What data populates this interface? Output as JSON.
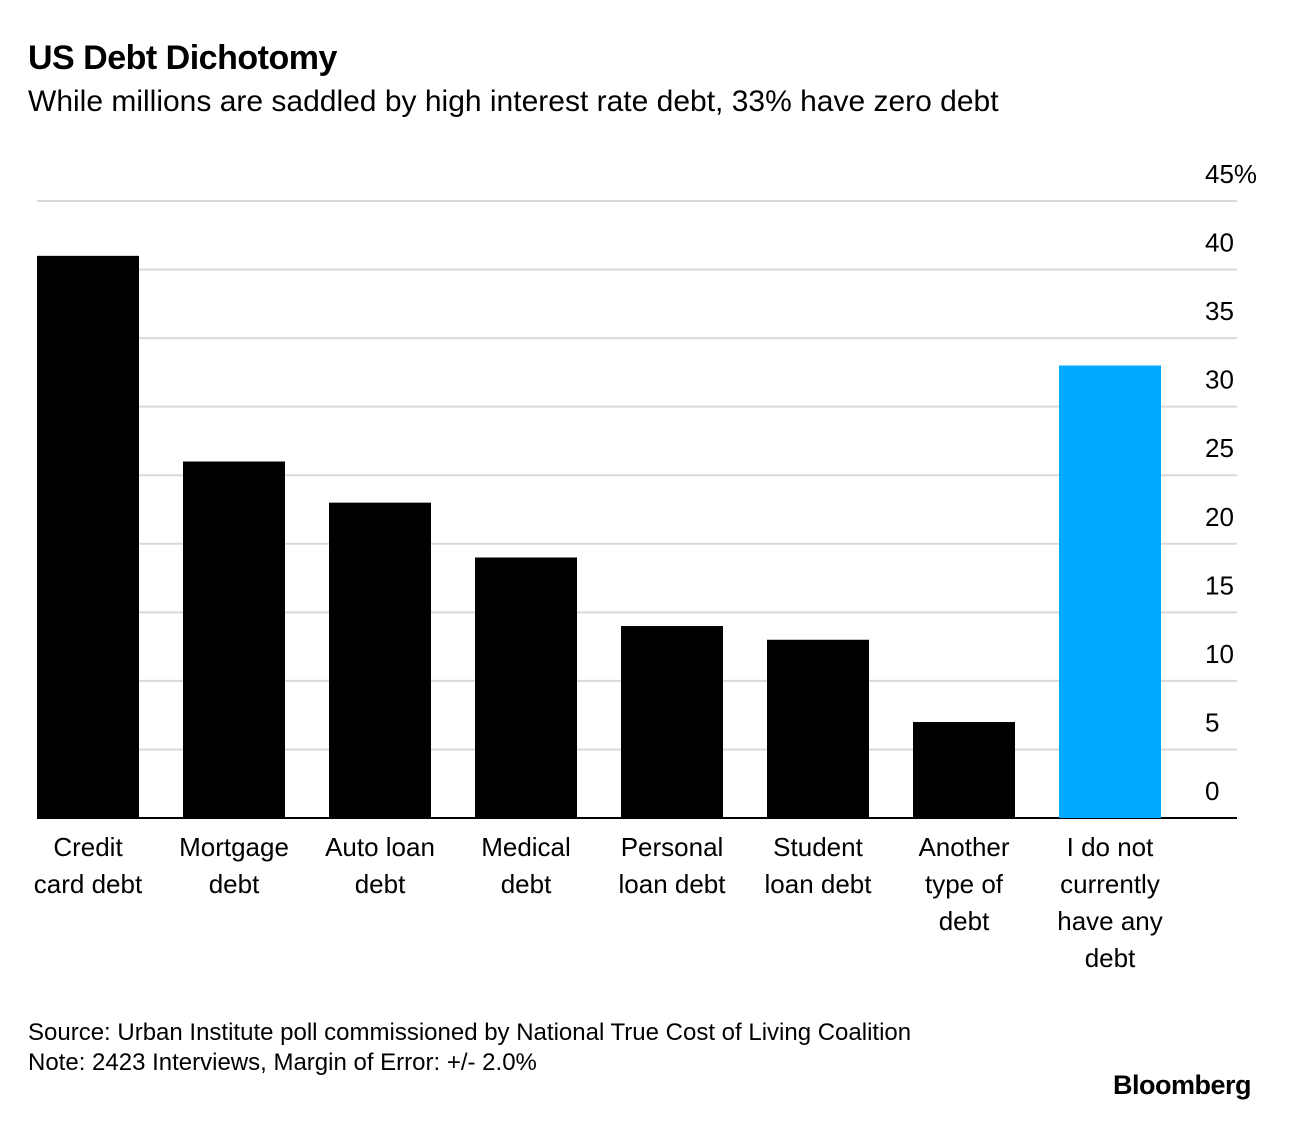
{
  "chart_data": {
    "type": "bar",
    "title": "US Debt Dichotomy",
    "subtitle": "While millions are saddled by high interest rate debt, 33% have zero debt",
    "categories": [
      [
        "Credit",
        "card debt"
      ],
      [
        "Mortgage",
        "debt"
      ],
      [
        "Auto loan",
        "debt"
      ],
      [
        "Medical",
        "debt"
      ],
      [
        "Personal",
        "loan debt"
      ],
      [
        "Student",
        "loan debt"
      ],
      [
        "Another",
        "type of",
        "debt"
      ],
      [
        "I do not",
        "currently",
        "have any",
        "debt"
      ]
    ],
    "values": [
      41,
      26,
      23,
      19,
      14,
      13,
      7,
      33
    ],
    "bar_colors": [
      "#000000",
      "#000000",
      "#000000",
      "#000000",
      "#000000",
      "#000000",
      "#000000",
      "#00aaff"
    ],
    "ylim": [
      0,
      45
    ],
    "yticks": [
      0,
      5,
      10,
      15,
      20,
      25,
      30,
      35,
      40,
      45
    ],
    "ytick_labels": [
      "0",
      "5",
      "10",
      "15",
      "20",
      "25",
      "30",
      "35",
      "40",
      "45%"
    ],
    "y_axis_side": "right",
    "grid": true,
    "gridline_color": "#d9d9d9",
    "xlabel": "",
    "ylabel": ""
  },
  "footer": {
    "source": "Source: Urban Institute poll commissioned by National True Cost of Living Coalition",
    "note": "Note: 2423 Interviews, Margin of Error: +/- 2.0%"
  },
  "brand": "Bloomberg"
}
